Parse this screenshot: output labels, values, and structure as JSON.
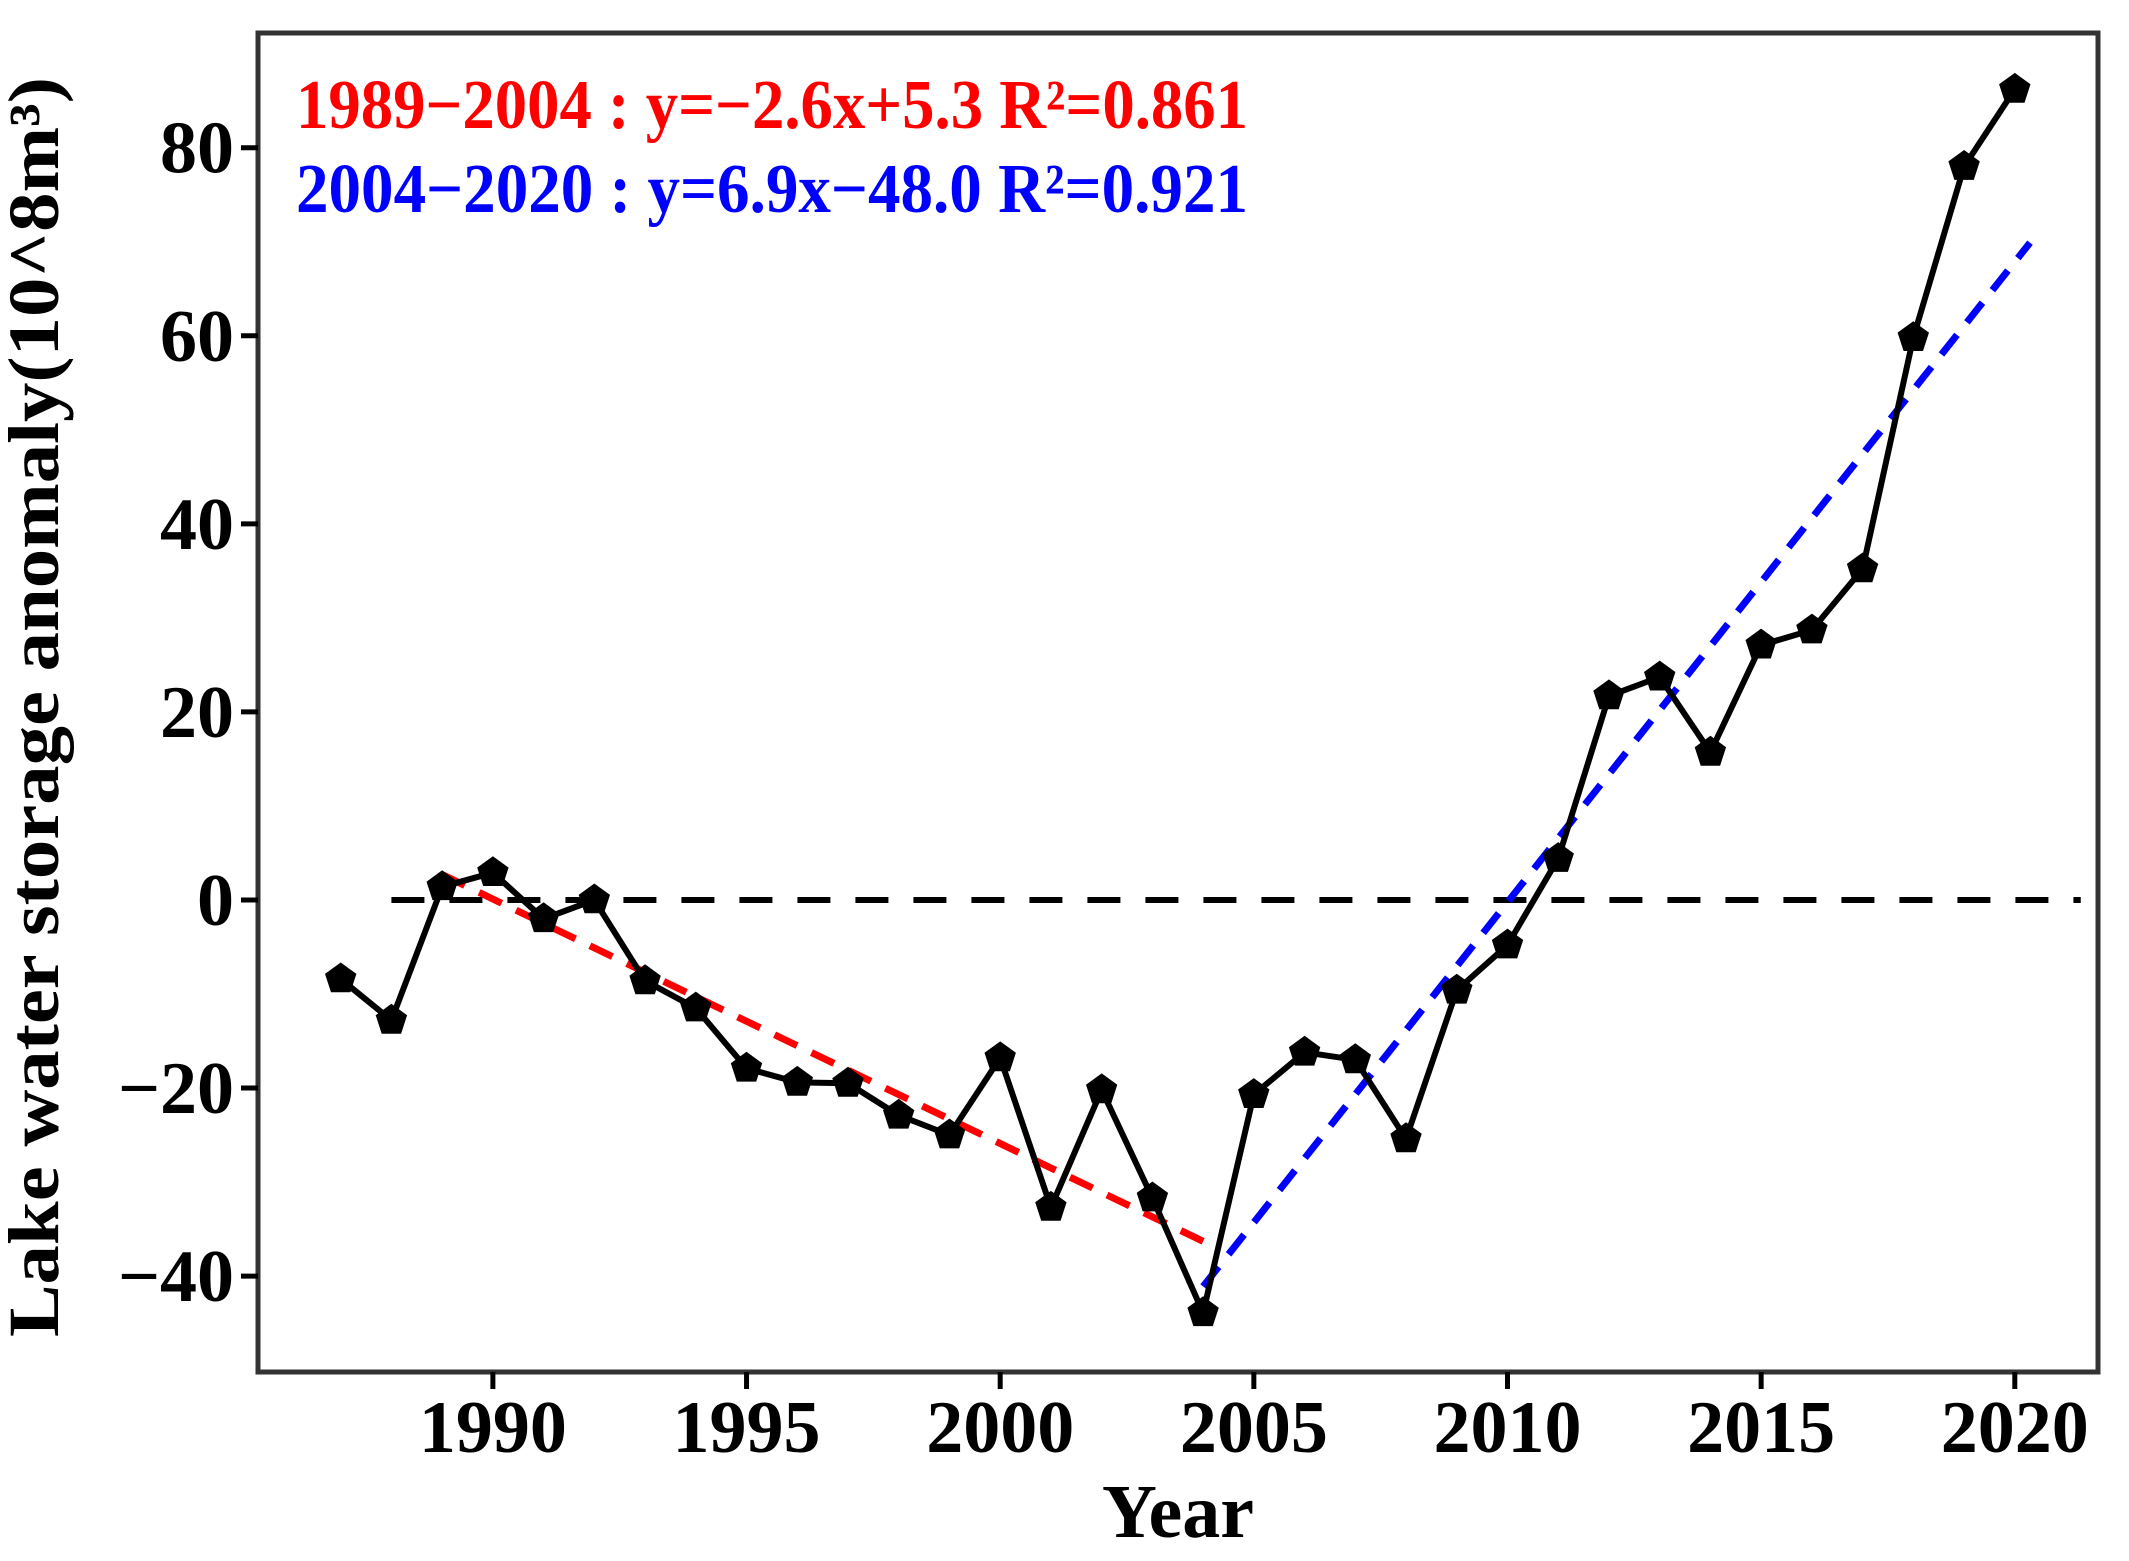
{
  "figure": {
    "background_color": "#ffffff",
    "frame_color": "#333333",
    "line_color": "#000000",
    "red_color": "#ff0000",
    "blue_color": "#0000ff"
  },
  "chart_data": {
    "type": "line",
    "title": "",
    "xlabel": "Year",
    "ylabel": "Lake water storage anomaly(10^8m³)",
    "x": [
      1987,
      1988,
      1989,
      1990,
      1991,
      1992,
      1993,
      1994,
      1995,
      1996,
      1997,
      1998,
      1999,
      2000,
      2001,
      2002,
      2003,
      2004,
      2005,
      2006,
      2007,
      2008,
      2009,
      2010,
      2011,
      2012,
      2013,
      2014,
      2015,
      2016,
      2017,
      2018,
      2019,
      2020
    ],
    "series": [
      {
        "name": "lake-water-storage-anomaly",
        "color": "#000000",
        "marker": "pentagon",
        "values": [
          -8.4,
          -12.8,
          1.4,
          2.9,
          -2.0,
          0.0,
          -8.6,
          -11.5,
          -17.9,
          -19.4,
          -19.5,
          -22.9,
          -25.0,
          -16.8,
          -32.7,
          -20.2,
          -31.7,
          -43.9,
          -20.7,
          -16.2,
          -17.0,
          -25.4,
          -9.6,
          -4.8,
          4.4,
          21.7,
          23.7,
          15.7,
          27.1,
          28.7,
          35.2,
          59.8,
          78.0,
          86.2
        ]
      }
    ],
    "x_ticks": [
      1990,
      1995,
      2000,
      2005,
      2010,
      2015,
      2020
    ],
    "x_tick_labels": [
      "1990",
      "1995",
      "2000",
      "2005",
      "2010",
      "2015",
      "2020"
    ],
    "y_ticks": [
      80,
      60,
      40,
      20,
      0,
      -20,
      -40
    ],
    "y_tick_labels": [
      "80",
      "60",
      "40",
      "20",
      "0",
      "−20",
      "−40"
    ],
    "xlim": [
      1985.37,
      2021.64
    ],
    "ylim": [
      -50.2,
      92.2
    ],
    "grid": false,
    "zero_line": {
      "value": 0,
      "x_start": 1988.0,
      "x_end": 2021.3,
      "color": "#000000",
      "style": "dashed"
    },
    "trend_lines": [
      {
        "name": "trend-1989-2004",
        "color": "#ff0000",
        "style": "dashed",
        "x_start": 1989.0,
        "y_start": 2.7,
        "x_end": 2004.0,
        "y_end": -36.3
      },
      {
        "name": "trend-2004-2020",
        "color": "#0000ff",
        "style": "dashed",
        "x_start": 2004.0,
        "y_start": -41.1,
        "x_end": 2020.3,
        "y_end": 69.9
      }
    ],
    "annotations": [
      {
        "name": "regression-red",
        "text": "1989−2004 : y=−2.6x+5.3 R²=0.861",
        "color": "#ff0000"
      },
      {
        "name": "regression-blue",
        "text": "2004−2020 : y=6.9x−48.0 R²=0.921",
        "color": "#0000ff"
      }
    ],
    "legend_position": "none"
  }
}
